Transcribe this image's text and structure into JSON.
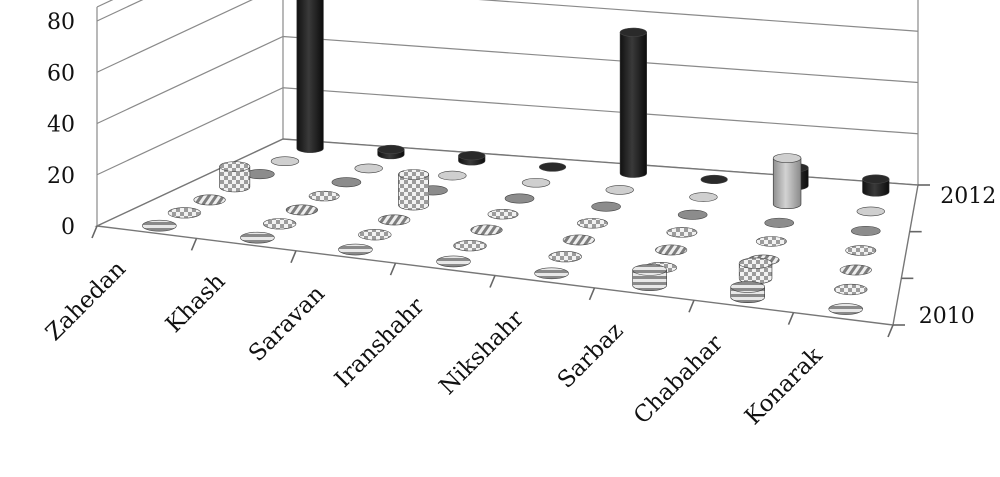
{
  "chart_data": {
    "type": "bar",
    "subtype": "3d-cylinder",
    "title": "",
    "xlabel": "",
    "ylabel": "",
    "ylim": [
      0,
      80
    ],
    "yticks": [
      0,
      20,
      40,
      60,
      80
    ],
    "grid": true,
    "categories": [
      "Zahedan",
      "Khash",
      "Saravan",
      "Iranshahr",
      "Nikshahr",
      "Sarbaz",
      "Chabahar",
      "Konarak"
    ],
    "series": [
      {
        "name": "2010",
        "fill": "horizontal-stripes",
        "color": "#9a9a9a",
        "values": [
          0,
          0,
          0,
          0,
          0,
          6,
          4,
          0
        ]
      },
      {
        "name": "",
        "fill": "checkered",
        "color": "#bdbdbd",
        "values": [
          0,
          0,
          0,
          0,
          0,
          0,
          6,
          0
        ]
      },
      {
        "name": "",
        "fill": "diagonal-stripes",
        "color": "#aaaaaa",
        "values": [
          0,
          0,
          0,
          0,
          0,
          0,
          0,
          0
        ]
      },
      {
        "name": "",
        "fill": "checkered",
        "color": "#cfcfcf",
        "values": [
          8,
          0,
          12,
          0,
          0,
          0,
          0,
          0
        ]
      },
      {
        "name": "",
        "fill": "solid",
        "color": "#8c8c8c",
        "values": [
          0,
          0,
          0,
          0,
          0,
          0,
          0,
          0
        ]
      },
      {
        "name": "",
        "fill": "solid-light",
        "color": "#b5b5b5",
        "values": [
          0,
          0,
          0,
          0,
          0,
          0,
          18,
          0
        ]
      },
      {
        "name": "2012",
        "fill": "solid-dark",
        "color": "#1e1e1e",
        "values": [
          75,
          2,
          2,
          0,
          55,
          0,
          7,
          5
        ]
      }
    ]
  }
}
